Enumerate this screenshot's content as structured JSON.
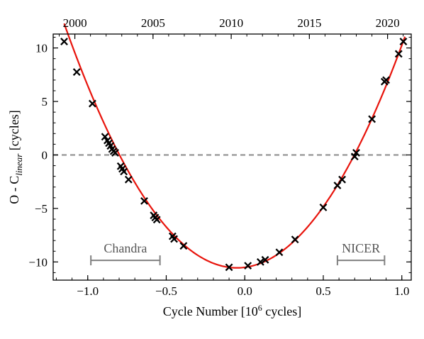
{
  "chart_data": {
    "type": "scatter",
    "xlabel_main": "Cycle Number [10",
    "xlabel_sup": "6",
    "xlabel_tail": " cycles]",
    "ylabel_main": "O - C",
    "ylabel_sub": "linear",
    "ylabel_tail": " [cycles]",
    "xlim": [
      -1.22,
      1.06
    ],
    "ylim": [
      -11.7,
      11.3
    ],
    "x_ticks": [
      -1.0,
      -0.5,
      0.0,
      0.5,
      1.0
    ],
    "x_tick_labels": [
      "−1.0",
      "−0.5",
      "0.0",
      "0.5",
      "1.0"
    ],
    "y_ticks": [
      -10,
      -5,
      0,
      5,
      10
    ],
    "y_tick_labels": [
      "−10",
      "−5",
      "0",
      "5",
      "10"
    ],
    "top_axis": {
      "label_positions": [
        -1.082,
        -0.5842,
        -0.0864,
        0.4114,
        0.9092
      ],
      "labels": [
        "2000",
        "2005",
        "2010",
        "2015",
        "2020"
      ],
      "minor_spacing": 0.09956
    },
    "grid": false,
    "reference_line": {
      "y": 0,
      "style": "dashed",
      "color": "#888888"
    },
    "fit_curve": {
      "model": "quadratic",
      "vertex_x": -0.05,
      "vertex_y": -10.55,
      "curvature": 18.87,
      "x_range": [
        -1.15,
        1.02
      ],
      "color": "#e8140c"
    },
    "points": {
      "marker": "x",
      "color": "#000000",
      "x": [
        -1.15,
        -1.07,
        -0.97,
        -0.89,
        -0.875,
        -0.865,
        -0.855,
        -0.845,
        -0.835,
        -0.825,
        -0.79,
        -0.78,
        -0.77,
        -0.74,
        -0.64,
        -0.58,
        -0.57,
        -0.56,
        -0.46,
        -0.45,
        -0.39,
        -0.1,
        0.02,
        0.1,
        0.13,
        0.22,
        0.32,
        0.5,
        0.59,
        0.62,
        0.7,
        0.71,
        0.81,
        0.89,
        0.9,
        0.98,
        1.01
      ],
      "y": [
        10.6,
        7.75,
        4.8,
        1.7,
        1.35,
        1.1,
        0.85,
        0.55,
        0.35,
        0.2,
        -1.05,
        -1.3,
        -1.55,
        -2.3,
        -4.3,
        -5.65,
        -5.85,
        -6.05,
        -7.6,
        -7.85,
        -8.5,
        -10.5,
        -10.35,
        -10.0,
        -9.8,
        -9.1,
        -7.9,
        -4.9,
        -2.85,
        -2.3,
        -0.15,
        0.2,
        3.35,
        6.85,
        7.0,
        9.45,
        10.6
      ]
    },
    "annotations": [
      {
        "text": "Chandra",
        "x_range": [
          -0.98,
          -0.54
        ],
        "y": -9.85,
        "color": "#808080"
      },
      {
        "text": "NICER",
        "x_range": [
          0.59,
          0.89
        ],
        "y": -9.85,
        "color": "#808080"
      }
    ]
  }
}
